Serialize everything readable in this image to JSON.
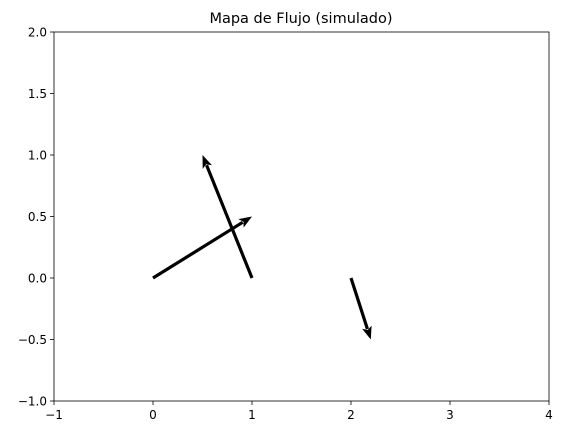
{
  "chart_data": {
    "type": "quiver",
    "title": "Mapa de Flujo (simulado)",
    "xlabel": "",
    "ylabel": "",
    "xlim": [
      -1,
      4
    ],
    "ylim": [
      -1,
      2
    ],
    "xticks": [
      -1,
      0,
      1,
      2,
      3,
      4
    ],
    "yticks": [
      -1.0,
      -0.5,
      0.0,
      0.5,
      1.0,
      1.5,
      2.0
    ],
    "xtick_labels": [
      "−1",
      "0",
      "1",
      "2",
      "3",
      "4"
    ],
    "ytick_labels": [
      "−1.0",
      "−0.5",
      "0.0",
      "0.5",
      "1.0",
      "1.5",
      "2.0"
    ],
    "grid": false,
    "legend": "none",
    "arrow_color": "#000000",
    "vectors": [
      {
        "x": 0,
        "y": 0,
        "u": 1.0,
        "v": 0.5
      },
      {
        "x": 1,
        "y": 0,
        "u": -0.5,
        "v": 1.0
      },
      {
        "x": 2,
        "y": 0,
        "u": 0.2,
        "v": -0.5
      }
    ]
  }
}
